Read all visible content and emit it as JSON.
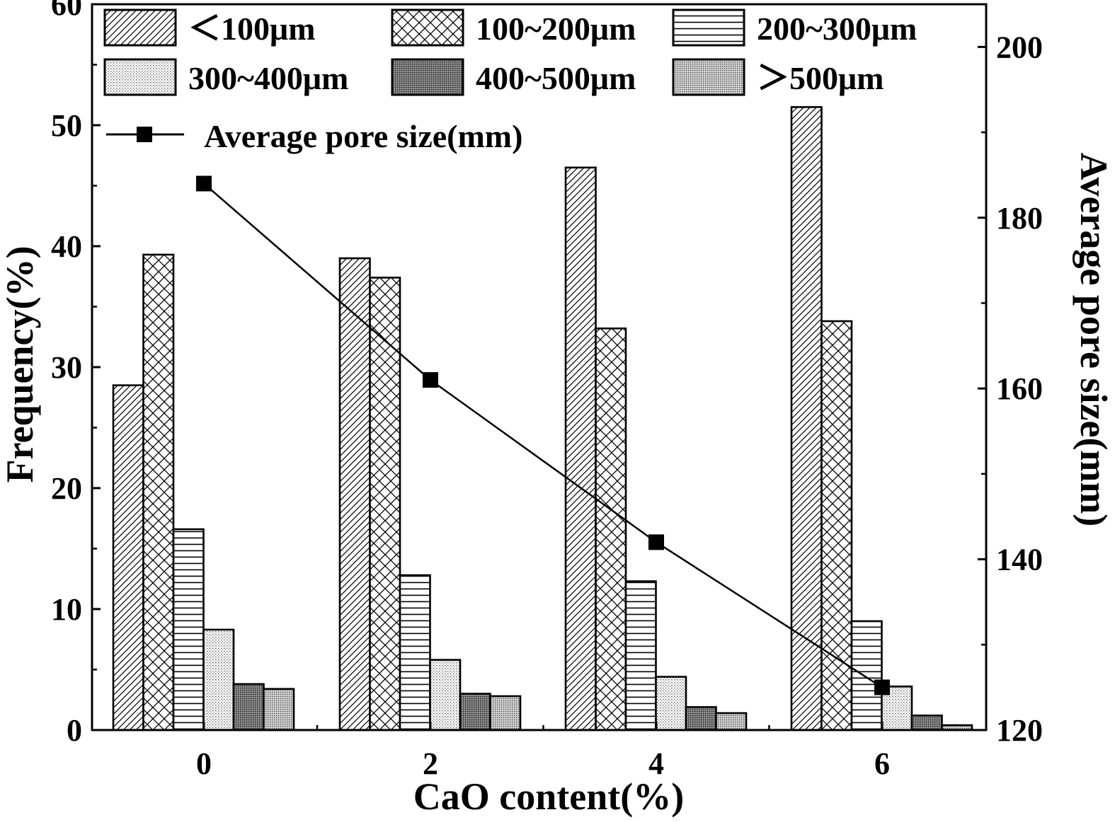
{
  "chart_data": {
    "type": "bar",
    "categories": [
      "0",
      "2",
      "4",
      "6"
    ],
    "xlabel": "CaO content(%)",
    "ylabel": "Frequency(%)",
    "ylabel_right": "Average pore size(mm)",
    "ylim": [
      0,
      60
    ],
    "ylim_right": [
      120,
      205
    ],
    "yticks": [
      "0",
      "10",
      "20",
      "30",
      "40",
      "50",
      "60"
    ],
    "yticks_right": [
      "120",
      "140",
      "160",
      "180",
      "200"
    ],
    "series": [
      {
        "name": "＜100μm",
        "pattern": "diag",
        "values": [
          28.5,
          39.0,
          46.5,
          51.5
        ]
      },
      {
        "name": "100~200μm",
        "pattern": "cross",
        "values": [
          39.3,
          37.4,
          33.2,
          33.8
        ]
      },
      {
        "name": "200~300μm",
        "pattern": "hline",
        "values": [
          16.6,
          12.8,
          12.3,
          9.0
        ]
      },
      {
        "name": "300~400μm",
        "pattern": "dotlight",
        "values": [
          8.3,
          5.8,
          4.4,
          3.6
        ]
      },
      {
        "name": "400~500μm",
        "pattern": "dotdark",
        "values": [
          3.8,
          3.0,
          1.9,
          1.2
        ]
      },
      {
        "name": "＞500μm",
        "pattern": "dotmed",
        "values": [
          3.4,
          2.8,
          1.4,
          0.4
        ]
      }
    ],
    "line": {
      "name": "Average pore size(mm)",
      "values": [
        184,
        161,
        142,
        125
      ]
    },
    "grid": false,
    "legend": "top"
  }
}
